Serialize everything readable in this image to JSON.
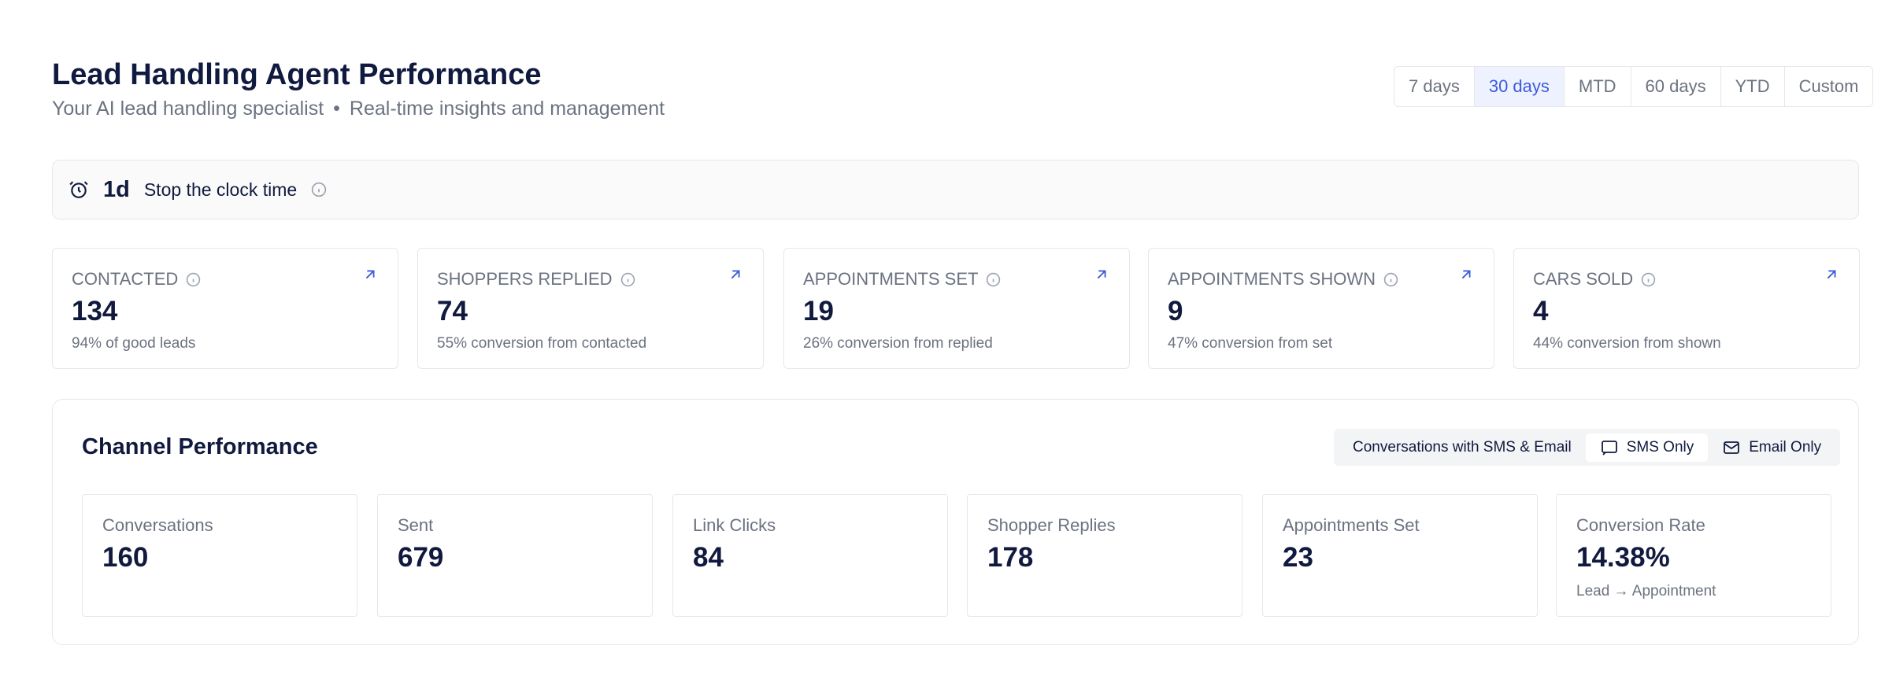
{
  "header": {
    "title": "Lead Handling Agent Performance",
    "subtitle_parts": [
      "Your AI lead handling specialist",
      "•",
      "Real-time insights and management"
    ]
  },
  "periods": {
    "options": [
      "7 days",
      "30 days",
      "MTD",
      "60 days",
      "YTD",
      "Custom"
    ],
    "active": "30 days"
  },
  "clock": {
    "value": "1d",
    "label": "Stop the clock time"
  },
  "metrics": [
    {
      "label": "CONTACTED",
      "value": 134,
      "note": "94% of good leads"
    },
    {
      "label": "SHOPPERS REPLIED",
      "value": 74,
      "note": "55% conversion from contacted"
    },
    {
      "label": "APPOINTMENTS SET",
      "value": 19,
      "note": "26% conversion from replied"
    },
    {
      "label": "APPOINTMENTS SHOWN",
      "value": 9,
      "note": "47% conversion from set"
    },
    {
      "label": "CARS SOLD",
      "value": 4,
      "note": "44% conversion from shown"
    }
  ],
  "channel": {
    "title": "Channel Performance",
    "toggle": [
      "Conversations with SMS & Email",
      "SMS Only",
      "Email Only"
    ],
    "active_toggle": "SMS Only",
    "stats": [
      {
        "label": "Conversations",
        "value": 160
      },
      {
        "label": "Sent",
        "value": 679
      },
      {
        "label": "Link Clicks",
        "value": 84
      },
      {
        "label": "Shopper Replies",
        "value": 178
      },
      {
        "label": "Appointments Set",
        "value": 23
      },
      {
        "label": "Conversion Rate",
        "value": "14.38%",
        "note": "Lead → Appointment"
      }
    ]
  }
}
